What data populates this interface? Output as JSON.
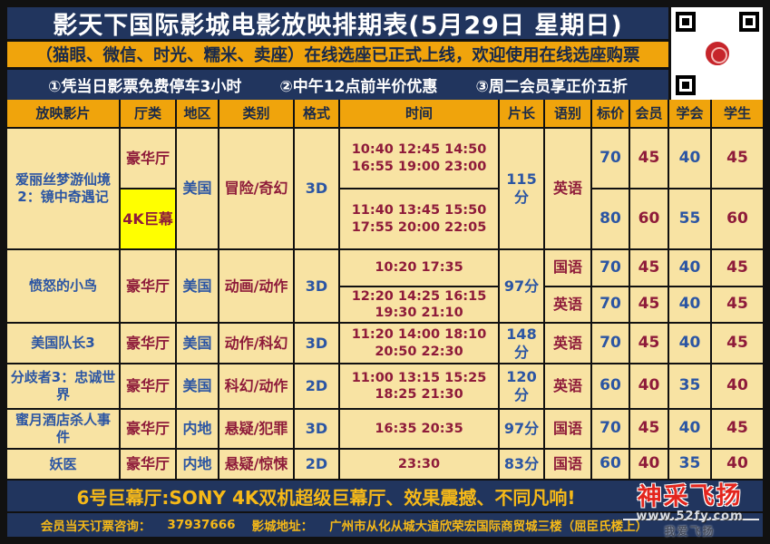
{
  "header": {
    "title": "影天下国际影城电影放映排期表(5月29日 星期日)",
    "online_seating_notice": "（猫眼、微信、时光、糯米、卖座）在线选座已正式上线，欢迎使用在线选座购票",
    "promos": [
      "①凭当日影票免费停车3小时",
      "②中午12点前半价优惠",
      "③周二会员享正价五折"
    ],
    "qr_icon": "qr-code"
  },
  "table": {
    "columns": [
      "放映影片",
      "厅类",
      "地区",
      "类别",
      "格式",
      "时间",
      "片长",
      "语别",
      "标价",
      "会员",
      "学会",
      "学生"
    ],
    "rows": [
      {
        "title": "爱丽丝梦游仙境2：镜中奇遇记",
        "halls": [
          "豪华厅",
          "4K巨幕"
        ],
        "region": "美国",
        "category": "冒险/奇幻",
        "format": "3D",
        "duration": "115分",
        "language": "英语",
        "sessions": [
          {
            "times": "10:40 12:45 14:50 16:55 19:00 23:00",
            "prices": [
              70,
              45,
              40,
              45
            ]
          },
          {
            "times": "11:40 13:45 15:50 17:55 20:00 22:05",
            "prices": [
              80,
              60,
              55,
              60
            ]
          }
        ]
      },
      {
        "title": "愤怒的小鸟",
        "hall": "豪华厅",
        "region": "美国",
        "category": "动画/动作",
        "format": "3D",
        "duration": "97分",
        "sessions": [
          {
            "times": "10:20 17:35",
            "language": "国语",
            "prices": [
              70,
              45,
              40,
              45
            ]
          },
          {
            "times": "12:20 14:25 16:15 19:30 21:10",
            "language": "英语",
            "prices": [
              70,
              45,
              40,
              45
            ]
          }
        ]
      },
      {
        "title": "美国队长3",
        "hall": "豪华厅",
        "region": "美国",
        "category": "动作/科幻",
        "format": "3D",
        "times": "11:20 14:00 18:10 20:50 22:30",
        "duration": "148分",
        "language": "英语",
        "prices": [
          70,
          45,
          40,
          45
        ]
      },
      {
        "title": "分歧者3：忠诚世界",
        "hall": "豪华厅",
        "region": "美国",
        "category": "科幻/动作",
        "format": "2D",
        "times": "11:00 13:15 15:25 18:25 21:30",
        "duration": "120分",
        "language": "英语",
        "prices": [
          60,
          40,
          35,
          40
        ]
      },
      {
        "title": "蜜月酒店杀人事件",
        "hall": "豪华厅",
        "region": "内地",
        "category": "悬疑/犯罪",
        "format": "3D",
        "times": "16:35 20:35",
        "duration": "97分",
        "language": "国语",
        "prices": [
          70,
          45,
          40,
          45
        ]
      },
      {
        "title": "妖医",
        "hall": "豪华厅",
        "region": "内地",
        "category": "悬疑/惊悚",
        "format": "2D",
        "times": "23:30",
        "duration": "83分",
        "language": "国语",
        "prices": [
          60,
          40,
          35,
          40
        ]
      }
    ]
  },
  "footer": {
    "imax_note": "6号巨幕厅:SONY 4K双机超级巨幕厅、效果震撼、不同凡响!",
    "booking_label": "会员当天订票咨询：",
    "booking_phone": "37937666",
    "address_label": "影城地址：",
    "address": "广州市从化从城大道欣荣宏国际商贸城三楼（屈臣氏楼上）"
  },
  "watermark": {
    "brand": "神采飞扬",
    "url": "www.52fy.com",
    "slogan": "我爱飞扬"
  },
  "colors": {
    "navy_bg": "#21355e",
    "gold_bar": "#f0a40c",
    "cell_bg": "#f8e3a3",
    "highlight_yellow": "#ffff00",
    "maroon_text": "#8e1b3a",
    "blue_text": "#2b55a3",
    "gold_text": "#f6b918",
    "logo_red": "#e3251d"
  }
}
